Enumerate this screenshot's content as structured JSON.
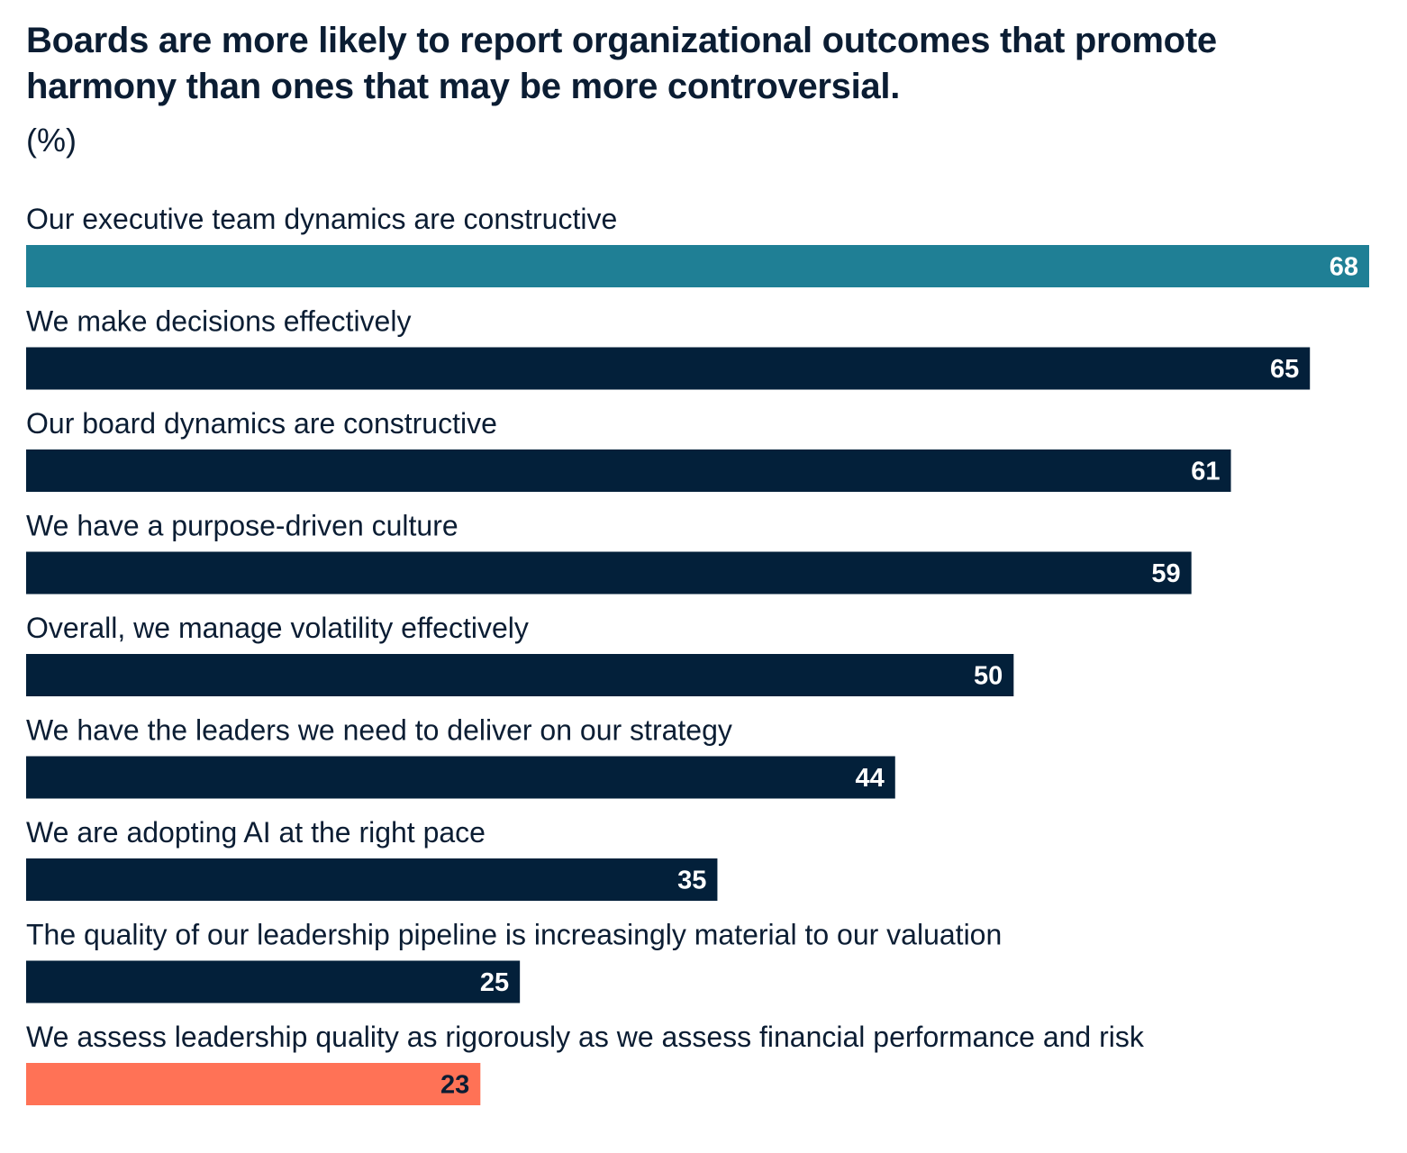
{
  "chart_data": {
    "type": "bar",
    "orientation": "horizontal",
    "title": "Boards are more likely to report organizational outcomes that promote harmony than ones that may be more controversial.",
    "subtitle": "(%)",
    "categories": [
      "Our executive team dynamics are constructive",
      "We make decisions effectively",
      "Our board dynamics are constructive",
      "We have a purpose-driven culture",
      "Overall, we manage volatility effectively",
      "We have the leaders we need to deliver on our strategy",
      "We are adopting AI at the right pace",
      "The quality of our leadership pipeline is increasingly material to our valuation",
      "We assess leadership quality as rigorously as we assess financial performance and risk"
    ],
    "values": [
      68,
      65,
      61,
      59,
      50,
      44,
      35,
      25,
      23
    ],
    "xlim": [
      0,
      68
    ],
    "grid": false,
    "legend": "none",
    "colors": {
      "default": "#03203a",
      "highlight_top": "#1f7f95",
      "highlight_bottom": "#ff7256",
      "label_on_dark": "#ffffff",
      "label_on_light": "#0b1d33"
    },
    "bar_colors": [
      "#1f7f95",
      "#03203a",
      "#03203a",
      "#03203a",
      "#03203a",
      "#03203a",
      "#03203a",
      "#03203a",
      "#ff7256"
    ]
  }
}
